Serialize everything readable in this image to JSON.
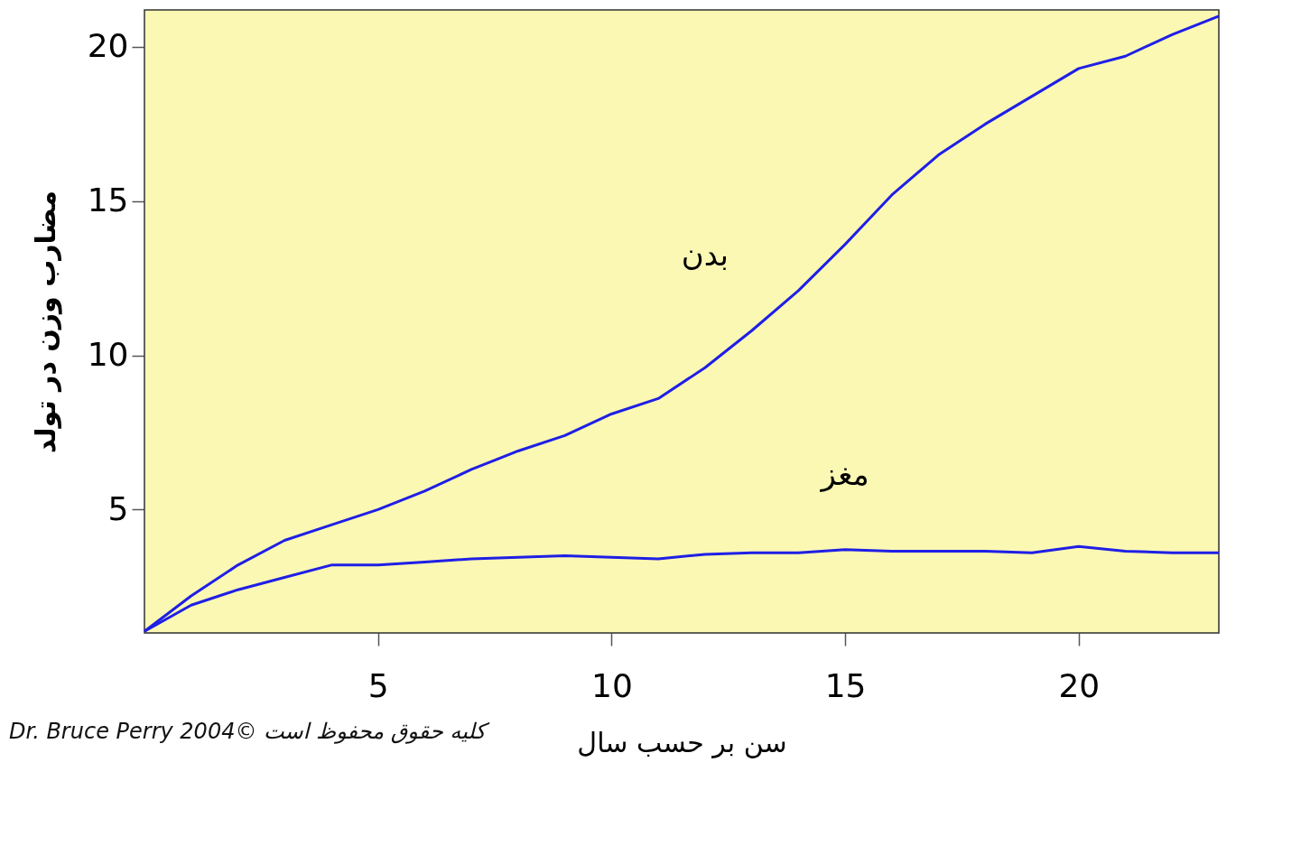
{
  "chart_data": {
    "type": "line",
    "xlabel": "سن بر حسب سال",
    "ylabel": "مضارب وزن در تولد",
    "x": [
      0,
      1,
      2,
      3,
      4,
      5,
      6,
      7,
      8,
      9,
      10,
      11,
      12,
      13,
      14,
      15,
      16,
      17,
      18,
      19,
      20,
      21,
      22,
      23
    ],
    "series": [
      {
        "name": "بدن",
        "color": "#1f1fe6",
        "values": [
          1.05,
          2.2,
          3.2,
          4.0,
          4.5,
          5.0,
          5.6,
          6.3,
          6.9,
          7.4,
          8.1,
          8.6,
          9.6,
          10.8,
          12.1,
          13.6,
          15.2,
          16.5,
          17.5,
          18.4,
          19.3,
          19.7,
          20.4,
          21.0
        ]
      },
      {
        "name": "مغز",
        "color": "#1f1fe6",
        "values": [
          1.05,
          1.9,
          2.4,
          2.8,
          3.2,
          3.2,
          3.3,
          3.4,
          3.45,
          3.5,
          3.45,
          3.4,
          3.55,
          3.6,
          3.6,
          3.7,
          3.65,
          3.65,
          3.65,
          3.6,
          3.8,
          3.65,
          3.6,
          3.6
        ]
      }
    ],
    "xlim": [
      0,
      23
    ],
    "xticks": [
      5,
      10,
      15,
      20
    ],
    "ylim": [
      1,
      21.2
    ],
    "yticks": [
      5,
      10,
      15,
      20
    ],
    "legend": false,
    "marker": "none",
    "line_style": "solid",
    "annotations": [
      "Dr. Bruce Perry 2004© کلیه حقوق محفوظ است"
    ]
  }
}
